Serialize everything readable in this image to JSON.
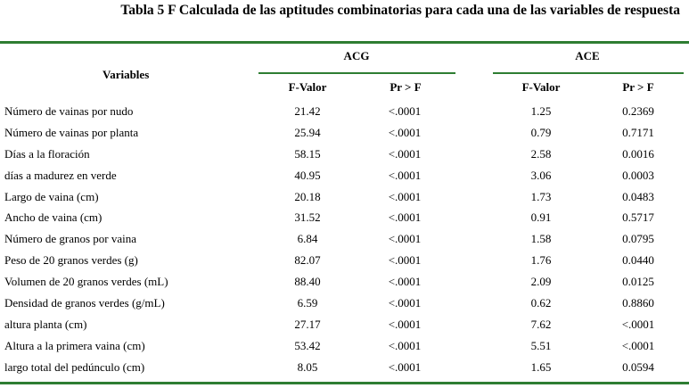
{
  "title": "Tabla 5 F Calculada de las aptitudes combinatorias para cada una de las variables de respuesta",
  "header": {
    "variables": "Variables",
    "group_acg": "ACG",
    "group_ace": "ACE",
    "fvalor": "F-Valor",
    "pr": "Pr > F"
  },
  "rows": [
    {
      "variable": "Número de vainas por nudo",
      "acg_f": "21.42",
      "acg_pr": "<.0001",
      "ace_f": "1.25",
      "ace_pr": "0.2369"
    },
    {
      "variable": "Número de vainas por planta",
      "acg_f": "25.94",
      "acg_pr": "<.0001",
      "ace_f": "0.79",
      "ace_pr": "0.7171"
    },
    {
      "variable": "Días a la floración",
      "acg_f": "58.15",
      "acg_pr": "<.0001",
      "ace_f": "2.58",
      "ace_pr": "0.0016"
    },
    {
      "variable": "días a madurez en verde",
      "acg_f": "40.95",
      "acg_pr": "<.0001",
      "ace_f": "3.06",
      "ace_pr": "0.0003"
    },
    {
      "variable": "Largo de vaina (cm)",
      "acg_f": "20.18",
      "acg_pr": "<.0001",
      "ace_f": "1.73",
      "ace_pr": "0.0483"
    },
    {
      "variable": "Ancho de vaina (cm)",
      "acg_f": "31.52",
      "acg_pr": "<.0001",
      "ace_f": "0.91",
      "ace_pr": "0.5717"
    },
    {
      "variable": "Número de granos por vaina",
      "acg_f": "6.84",
      "acg_pr": "<.0001",
      "ace_f": "1.58",
      "ace_pr": "0.0795"
    },
    {
      "variable": "Peso de 20 granos verdes (g)",
      "acg_f": "82.07",
      "acg_pr": "<.0001",
      "ace_f": "1.76",
      "ace_pr": "0.0440"
    },
    {
      "variable": "Volumen de 20 granos verdes (mL)",
      "acg_f": "88.40",
      "acg_pr": "<.0001",
      "ace_f": "2.09",
      "ace_pr": "0.0125"
    },
    {
      "variable": "Densidad de granos verdes (g/mL)",
      "acg_f": "6.59",
      "acg_pr": "<.0001",
      "ace_f": "0.62",
      "ace_pr": "0.8860"
    },
    {
      "variable": "altura planta (cm)",
      "acg_f": "27.17",
      "acg_pr": "<.0001",
      "ace_f": "7.62",
      "ace_pr": "<.0001"
    },
    {
      "variable": "Altura a la primera vaina  (cm)",
      "acg_f": "53.42",
      "acg_pr": "<.0001",
      "ace_f": "5.51",
      "ace_pr": "<.0001"
    },
    {
      "variable": "largo total del pedúnculo  (cm)",
      "acg_f": "8.05",
      "acg_pr": "<.0001",
      "ace_f": "1.65",
      "ace_pr": "0.0594"
    }
  ],
  "colors": {
    "rule": "#2e7d32",
    "text": "#000000",
    "background": "#ffffff"
  }
}
